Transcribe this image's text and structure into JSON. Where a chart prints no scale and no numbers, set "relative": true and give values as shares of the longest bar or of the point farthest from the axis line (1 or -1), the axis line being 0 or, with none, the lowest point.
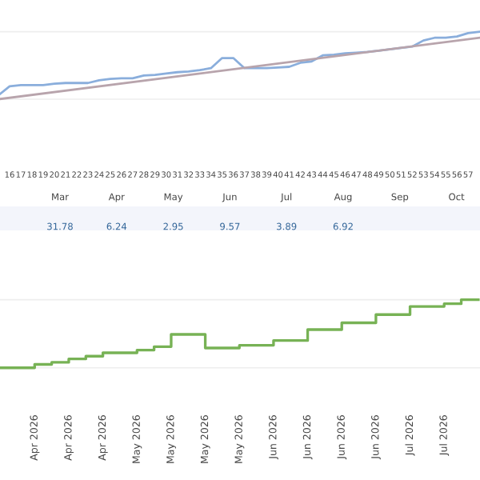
{
  "chart_data": [
    {
      "type": "line",
      "relative": true,
      "grid": "y",
      "categories": [
        null,
        "16",
        "17",
        "18",
        "19",
        "20",
        "21",
        "22",
        "23",
        "24",
        "25",
        "26",
        "27",
        "28",
        "29",
        "30",
        "31",
        "32",
        "33",
        "34",
        "35",
        "36",
        "37",
        "38",
        "39",
        "40",
        "41",
        "42",
        "43",
        "44",
        "45",
        "46",
        "47",
        "48",
        "49",
        "50",
        "51",
        "52",
        "53",
        "54",
        "55",
        "56",
        "57",
        null
      ],
      "series": [
        {
          "color": "#8aaedc",
          "values": [
            0.06,
            0.19,
            0.21,
            0.21,
            0.21,
            0.23,
            0.24,
            0.24,
            0.24,
            0.28,
            0.3,
            0.31,
            0.31,
            0.35,
            0.36,
            0.38,
            0.4,
            0.41,
            0.43,
            0.46,
            0.61,
            0.61,
            0.46,
            0.46,
            0.46,
            0.47,
            0.48,
            0.54,
            0.56,
            0.65,
            0.66,
            0.68,
            0.69,
            0.7,
            0.72,
            0.74,
            0.76,
            0.78,
            0.87,
            0.91,
            0.91,
            0.93,
            0.98,
            1.0
          ]
        },
        {
          "color": "#b8a4ac",
          "values": [
            0,
            null,
            null,
            null,
            null,
            null,
            null,
            null,
            null,
            null,
            null,
            null,
            null,
            null,
            null,
            null,
            null,
            null,
            null,
            null,
            null,
            null,
            null,
            null,
            null,
            null,
            null,
            null,
            null,
            null,
            null,
            null,
            null,
            null,
            null,
            null,
            null,
            null,
            null,
            null,
            null,
            null,
            null,
            0.91
          ]
        }
      ],
      "annotations": [
        "Mar",
        "Apr",
        "May",
        "Jun",
        "Jul",
        "Aug",
        "Sep",
        "Oct",
        "31.78",
        "6.24",
        "2.95",
        "9.57",
        "3.89",
        "6.92"
      ]
    },
    {
      "type": "step",
      "relative": true,
      "grid": "y",
      "categories": [
        null,
        null,
        "Apr 2026",
        null,
        "Apr 2026",
        null,
        "Apr 2026",
        null,
        "May 2026",
        null,
        "May 2026",
        null,
        "May 2026",
        null,
        "May 2026",
        null,
        "Jun 2026",
        null,
        "Jun 2026",
        null,
        "Jun 2026",
        null,
        "Jun 2026",
        null,
        "Jul 2026",
        null,
        "Jul 2026",
        null,
        null
      ],
      "series": [
        {
          "color": "#77b255",
          "values": [
            0,
            0,
            0.05,
            0.08,
            0.13,
            0.17,
            0.22,
            0.22,
            0.26,
            0.31,
            0.49,
            0.49,
            0.29,
            0.29,
            0.33,
            0.33,
            0.4,
            0.4,
            0.56,
            0.56,
            0.66,
            0.66,
            0.78,
            0.78,
            0.9,
            0.9,
            0.94,
            1.0,
            1.0
          ]
        }
      ]
    }
  ]
}
